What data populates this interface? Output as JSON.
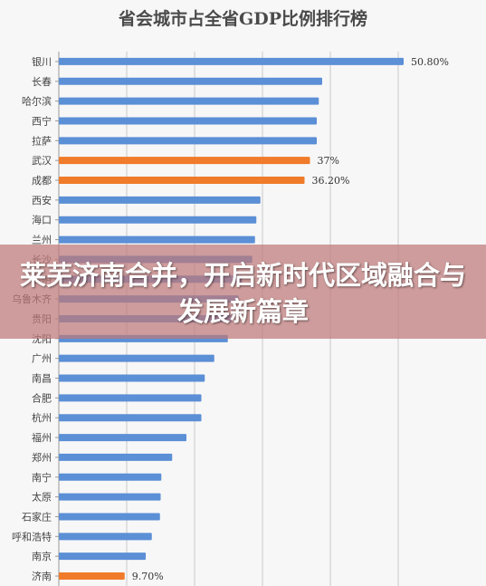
{
  "chart_data": {
    "type": "bar",
    "orientation": "horizontal",
    "title": "省会城市占全省GDP比例排行榜",
    "categories": [
      "银川",
      "长春",
      "哈尔滨",
      "西宁",
      "拉萨",
      "武汉",
      "成都",
      "西安",
      "海口",
      "兰州",
      "长沙",
      "昆明",
      "乌鲁木齐",
      "贵阳",
      "沈阳",
      "广州",
      "南昌",
      "合肥",
      "杭州",
      "福州",
      "郑州",
      "南宁",
      "太原",
      "石家庄",
      "呼和浩特",
      "南京",
      "济南"
    ],
    "values": [
      50.8,
      38.8,
      38.3,
      38.0,
      38.0,
      37.0,
      36.2,
      29.7,
      29.1,
      28.9,
      28.5,
      27.0,
      26.5,
      25.5,
      24.9,
      22.9,
      21.5,
      21.0,
      21.0,
      18.8,
      16.7,
      15.1,
      15.0,
      14.9,
      13.7,
      12.8,
      9.7
    ],
    "data_labels": {
      "0": "50.80%",
      "5": "37%",
      "6": "36.20%",
      "26": "9.70%"
    },
    "highlight_indices": [
      5,
      6,
      26
    ],
    "xlim": [
      0,
      50
    ],
    "grid": true,
    "colors": {
      "default": "#5b8fd6",
      "highlight": "#f07b2a",
      "grid": "#c8c8c8",
      "label": "#444444"
    }
  },
  "overlay": {
    "headline": "莱芜济南合并，开启新时代区域融合与发展新篇章"
  }
}
